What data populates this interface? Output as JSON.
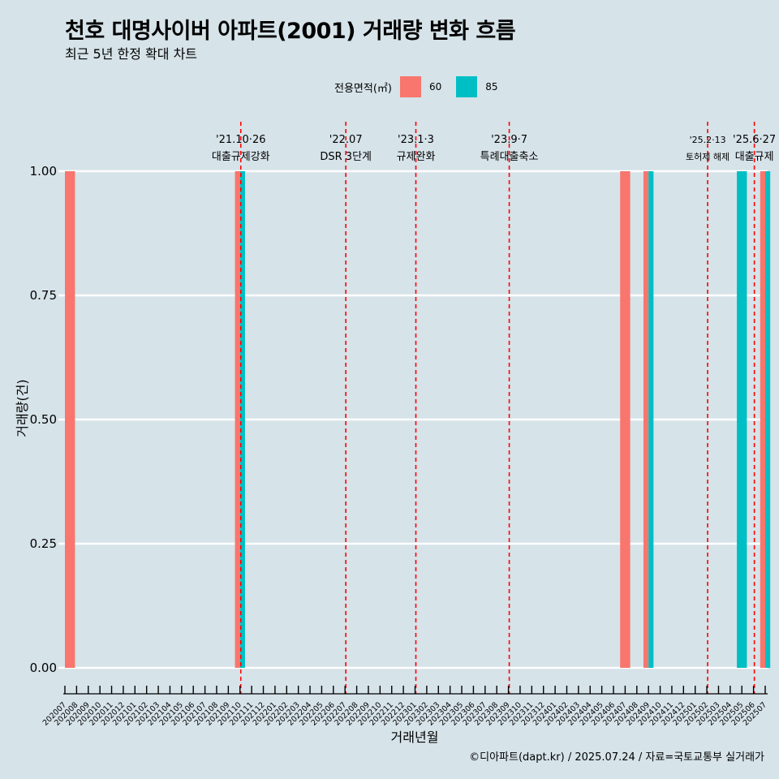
{
  "title": "천호 대명사이버 아파트(2001) 거래량 변화 흐름",
  "subtitle": "최근 5년 한정 확대 차트",
  "caption": "©디아파트(dapt.kr) / 2025.07.24 / 자료=국토교통부 실거래가",
  "colors": {
    "background": "#d6e3e9",
    "series_60": "#f8766d",
    "series_85": "#00bfc4",
    "event_line": "#ff0000",
    "grid": "#ffffff"
  },
  "chart_data": {
    "type": "bar",
    "xlabel": "거래년월",
    "ylabel": "거래량(건)",
    "ylim": [
      0,
      1
    ],
    "yticks": [
      "0.00",
      "0.25",
      "0.50",
      "0.75",
      "1.00"
    ],
    "grid": true,
    "legend": {
      "title": "전용면적(㎡)",
      "position": "top"
    },
    "categories": [
      "202007",
      "202008",
      "202009",
      "202010",
      "202011",
      "202012",
      "202101",
      "202102",
      "202103",
      "202104",
      "202105",
      "202106",
      "202107",
      "202108",
      "202109",
      "202110",
      "202111",
      "202112",
      "202201",
      "202202",
      "202203",
      "202204",
      "202205",
      "202206",
      "202207",
      "202208",
      "202209",
      "202210",
      "202211",
      "202212",
      "202301",
      "202302",
      "202303",
      "202304",
      "202305",
      "202306",
      "202307",
      "202308",
      "202309",
      "202310",
      "202311",
      "202312",
      "202401",
      "202402",
      "202403",
      "202404",
      "202405",
      "202406",
      "202407",
      "202408",
      "202409",
      "202410",
      "202411",
      "202412",
      "202501",
      "202502",
      "202503",
      "202504",
      "202505",
      "202506",
      "202507"
    ],
    "series": [
      {
        "name": "60",
        "color": "#f8766d",
        "points": [
          {
            "x": "202007",
            "y": 1
          },
          {
            "x": "202110",
            "y": 1
          },
          {
            "x": "202407",
            "y": 1
          },
          {
            "x": "202409",
            "y": 1
          },
          {
            "x": "202507",
            "y": 1
          }
        ]
      },
      {
        "name": "85",
        "color": "#00bfc4",
        "points": [
          {
            "x": "202110",
            "y": 1
          },
          {
            "x": "202409",
            "y": 1
          },
          {
            "x": "202505",
            "y": 1
          },
          {
            "x": "202507",
            "y": 1
          }
        ]
      }
    ],
    "events": [
      {
        "date": "202110",
        "line1": "'21.10·26",
        "line2": "대출규제강화"
      },
      {
        "date": "202207",
        "line1": "'22.07",
        "line2": "DSR 3단계"
      },
      {
        "date": "202301",
        "line1": "'23.1·3",
        "line2": "규제완화"
      },
      {
        "date": "202309",
        "line1": "'23.9·7",
        "line2": "특례대출축소"
      },
      {
        "date": "202502",
        "line1": "'25.2·13",
        "line2": "토허제 해제",
        "small": true
      },
      {
        "date": "202506",
        "line1": "'25.6·27",
        "line2": "대출규제"
      }
    ]
  }
}
